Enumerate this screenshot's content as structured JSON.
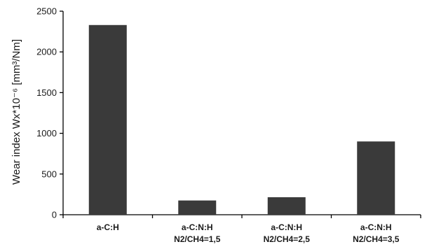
{
  "chart_data": {
    "type": "bar",
    "categories": [
      [
        "a-C:H"
      ],
      [
        "a-C:N:H",
        "N2/CH4=1,5"
      ],
      [
        "a-C:N:H",
        "N2/CH4=2,5"
      ],
      [
        "a-C:N:H",
        "N2/CH4=3,5"
      ]
    ],
    "values": [
      2330,
      175,
      215,
      900
    ],
    "ylabel": "Wear index Wx*10⁻⁶ [mm³/Nm]",
    "ylim": [
      0,
      2500
    ],
    "yticks": [
      0,
      500,
      1000,
      1500,
      2000,
      2500
    ],
    "bar_color": "#3a3a3a",
    "grid": false,
    "legend": "none"
  }
}
